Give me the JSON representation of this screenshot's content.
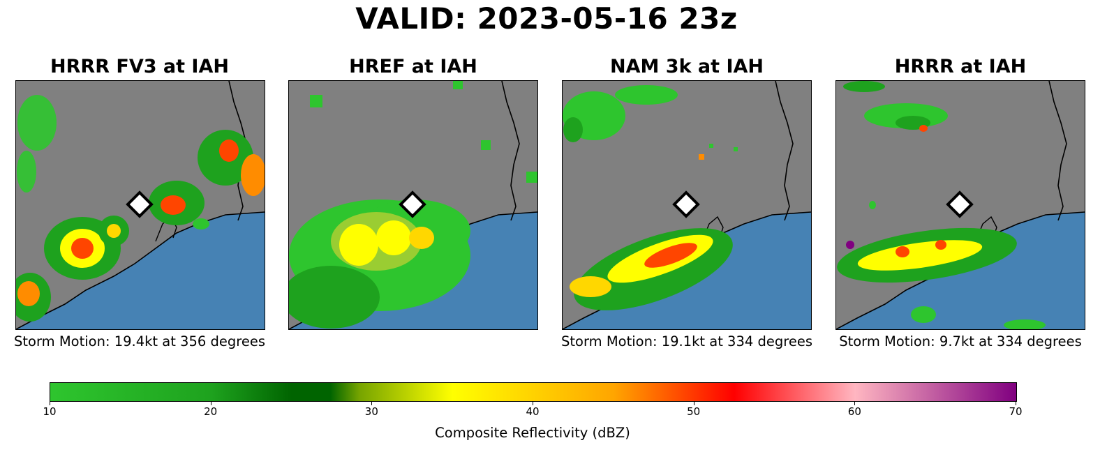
{
  "title": "VALID: 2023-05-16 23z",
  "panels": [
    {
      "title": "HRRR FV3 at IAH",
      "motion": "Storm Motion: 19.4kt at 356 degrees"
    },
    {
      "title": "HREF at IAH",
      "motion": ""
    },
    {
      "title": "NAM 3k at IAH",
      "motion": "Storm Motion: 19.1kt at 334 degrees"
    },
    {
      "title": "HRRR at IAH",
      "motion": "Storm Motion: 9.7kt at 334 degrees"
    }
  ],
  "map_colors": {
    "land": "#808080",
    "water": "#4682b4",
    "coast": "#000000",
    "marker_fill": "#ffffff",
    "marker_stroke": "#000000"
  },
  "colorbar": {
    "label": "Composite Reflectivity (dBZ)",
    "range": [
      10,
      70
    ],
    "ticks": [
      "10",
      "20",
      "30",
      "40",
      "50",
      "60",
      "70"
    ],
    "stops": [
      {
        "dbz": 10,
        "color": "#2ec52e"
      },
      {
        "dbz": 20,
        "color": "#1ea21e"
      },
      {
        "dbz": 25,
        "color": "#006400"
      },
      {
        "dbz": 35,
        "color": "#ffff00"
      },
      {
        "dbz": 45,
        "color": "#ffa500"
      },
      {
        "dbz": 52.5,
        "color": "#ff0000"
      },
      {
        "dbz": 60,
        "color": "#ffb6c1"
      },
      {
        "dbz": 70,
        "color": "#800080"
      }
    ]
  }
}
